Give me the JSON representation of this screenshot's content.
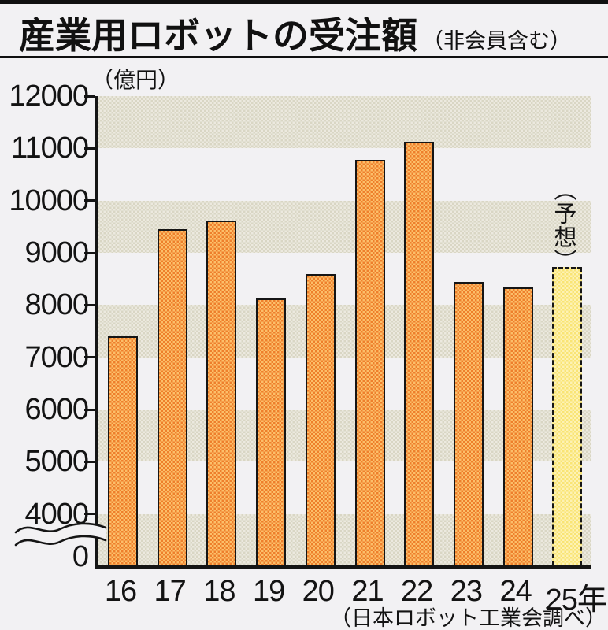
{
  "header": {
    "title": "産業用ロボットの受注額",
    "note": "（非会員含む）"
  },
  "unit_label": "（億円）",
  "forecast_label": "（予想）",
  "source": "（日本ロボット工業会調べ）",
  "chart_data": {
    "type": "bar",
    "title": "産業用ロボットの受注額（非会員含む）",
    "xlabel": "年",
    "ylabel": "億円",
    "categories": [
      "16",
      "17",
      "18",
      "19",
      "20",
      "21",
      "22",
      "23",
      "24",
      "25年"
    ],
    "values": [
      7400,
      9450,
      9620,
      8120,
      8600,
      10780,
      11120,
      8440,
      8330,
      8730
    ],
    "forecast_index": 9,
    "yticks": [
      12000,
      11000,
      10000,
      9000,
      8000,
      7000,
      6000,
      5000,
      4000,
      0
    ],
    "ylim": [
      0,
      12000
    ],
    "axis_break_below": 4000,
    "grid": "alternating-bands",
    "legend": "none",
    "colors": {
      "bar": "#ee7f2c",
      "bar_dot": "#fcbf6a",
      "forecast_bar": "#f9e475",
      "forecast_dot": "#fdf2b4",
      "band": "#ece9df",
      "axis": "#151515",
      "background": "#f2f1f3"
    }
  }
}
